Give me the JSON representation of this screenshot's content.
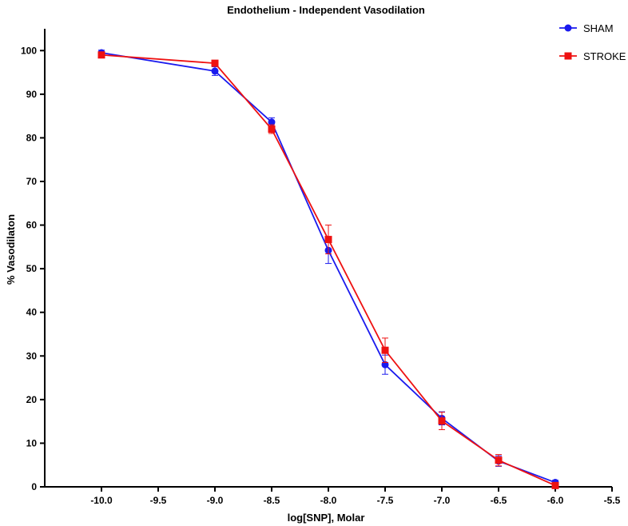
{
  "chart_data": {
    "type": "line",
    "title": "Endothelium - Independent Vasodilation",
    "xlabel": "log[SNP], Molar",
    "ylabel": "% Vasodilaton",
    "xlim": [
      -10.5,
      -5.5
    ],
    "ylim": [
      0,
      105
    ],
    "x_ticks": [
      -10.0,
      -9.5,
      -9.0,
      -8.5,
      -8.0,
      -7.5,
      -7.0,
      -6.5,
      -6.0,
      -5.5
    ],
    "x_tick_labels": [
      "-10.0",
      "-9.5",
      "-9.0",
      "-8.5",
      "-8.0",
      "-7.5",
      "-7.0",
      "-6.5",
      "-6.0",
      "-5.5"
    ],
    "y_ticks": [
      0,
      10,
      20,
      30,
      40,
      50,
      60,
      70,
      80,
      90,
      100
    ],
    "y_tick_labels": [
      "0",
      "10",
      "20",
      "30",
      "40",
      "50",
      "60",
      "70",
      "80",
      "90",
      "100"
    ],
    "grid": false,
    "legend_position": "top-right",
    "series": [
      {
        "name": "SHAM",
        "color": "#1a1aee",
        "marker": "circle",
        "x": [
          -10.0,
          -9.0,
          -8.5,
          -8.0,
          -7.5,
          -7.0,
          -6.5,
          -6.0
        ],
        "y": [
          99.5,
          95.3,
          83.6,
          54.2,
          28.0,
          15.7,
          5.9,
          1.0
        ],
        "err": [
          0.6,
          1.0,
          1.0,
          3.0,
          2.2,
          1.5,
          1.2,
          0.5
        ]
      },
      {
        "name": "STROKE",
        "color": "#ee1111",
        "marker": "square",
        "x": [
          -10.0,
          -9.0,
          -8.5,
          -8.0,
          -7.5,
          -7.0,
          -6.5,
          -6.0
        ],
        "y": [
          99.0,
          97.1,
          82.0,
          56.7,
          31.3,
          15.1,
          6.1,
          0.3
        ],
        "err": [
          0.5,
          0.6,
          1.0,
          3.3,
          2.8,
          2.0,
          1.3,
          0.4
        ]
      }
    ]
  }
}
